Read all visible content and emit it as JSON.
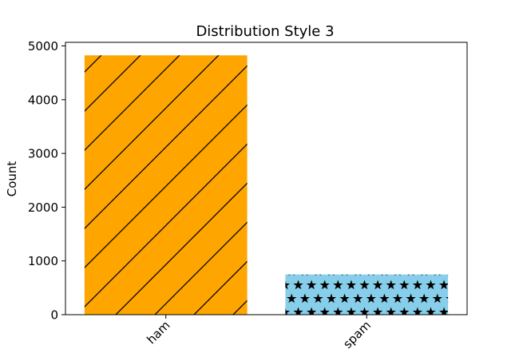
{
  "chart_data": {
    "type": "bar",
    "title": "Distribution Style 3",
    "xlabel": "",
    "ylabel": "Count",
    "categories": [
      "ham",
      "spam"
    ],
    "values": [
      4825,
      747
    ],
    "ylim": [
      0,
      5000
    ],
    "yticks": [
      0,
      1000,
      2000,
      3000,
      4000,
      5000
    ],
    "bar_colors": [
      "#ffa500",
      "#87ceeb"
    ],
    "bar_hatches": [
      "diagonal",
      "stars"
    ],
    "hatch_color": "#000000",
    "xtick_rotation": -45,
    "grid": false,
    "legend": "none"
  }
}
